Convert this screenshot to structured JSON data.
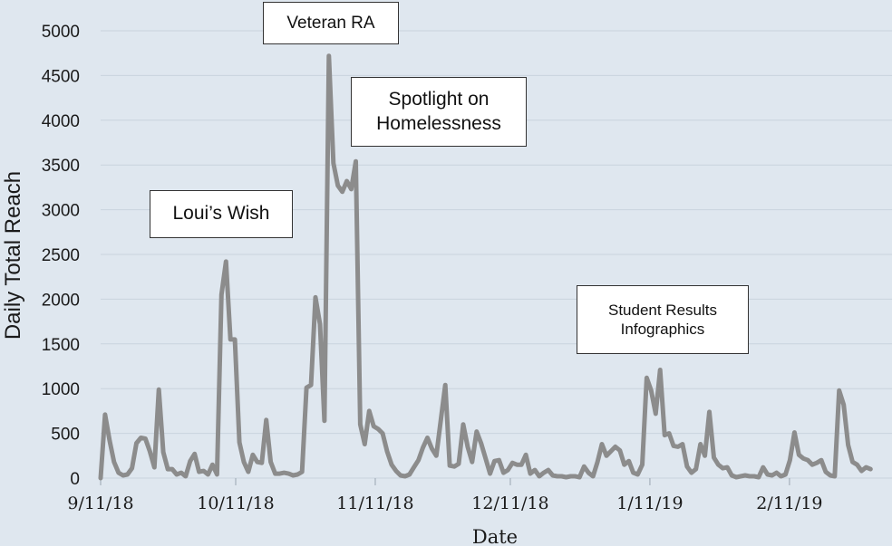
{
  "chart_data": {
    "type": "line",
    "xlabel": "Date",
    "ylabel": "Daily Total Reach",
    "ylim": [
      0,
      5000
    ],
    "yticks": [
      0,
      500,
      1000,
      1500,
      2000,
      2500,
      3000,
      3500,
      4000,
      4500,
      5000
    ],
    "xtick_labels": [
      "9/11/18",
      "10/11/18",
      "11/11/18",
      "12/11/18",
      "1/11/19",
      "2/11/19"
    ],
    "x_start": "2018-09-11",
    "x_end": "2019-03-01",
    "grid": "horizontal",
    "line_color": "#8c8c8c",
    "series": [
      {
        "values": [
          0,
          710,
          420,
          180,
          60,
          30,
          40,
          110,
          390,
          450,
          440,
          300,
          120,
          990,
          290,
          100,
          100,
          40,
          60,
          20,
          190,
          270,
          70,
          80,
          40,
          150,
          40,
          2050,
          2420,
          1550,
          1550,
          400,
          180,
          70,
          260,
          180,
          170,
          650,
          180,
          50,
          50,
          60,
          50,
          30,
          40,
          70,
          1010,
          1040,
          2020,
          1720,
          640,
          4720,
          3520,
          3270,
          3200,
          3320,
          3230,
          3540,
          600,
          380,
          750,
          580,
          550,
          500,
          300,
          150,
          80,
          30,
          20,
          40,
          120,
          200,
          340,
          450,
          330,
          250,
          650,
          1040,
          140,
          130,
          160,
          600,
          350,
          180,
          520,
          390,
          220,
          50,
          190,
          200,
          60,
          90,
          170,
          150,
          150,
          260,
          50,
          90,
          20,
          60,
          90,
          30,
          20,
          20,
          10,
          20,
          20,
          10,
          130,
          60,
          20,
          180,
          380,
          250,
          300,
          350,
          310,
          150,
          190,
          60,
          40,
          150,
          1120,
          980,
          720,
          1210,
          480,
          500,
          360,
          350,
          380,
          130,
          60,
          100,
          380,
          250,
          740,
          230,
          150,
          110,
          120,
          30,
          10,
          20,
          30,
          20,
          20,
          10,
          120,
          40,
          30,
          60,
          20,
          40,
          200,
          510,
          260,
          220,
          200,
          150,
          170,
          200,
          70,
          30,
          20,
          980,
          820,
          370,
          180,
          150,
          80,
          120,
          100
        ]
      }
    ],
    "annotations": [
      {
        "text": "Veteran RA"
      },
      {
        "text": "Spotlight on\nHomelessness"
      },
      {
        "text": "Loui’s Wish"
      },
      {
        "text": "Student Results\nInfographics"
      }
    ]
  }
}
